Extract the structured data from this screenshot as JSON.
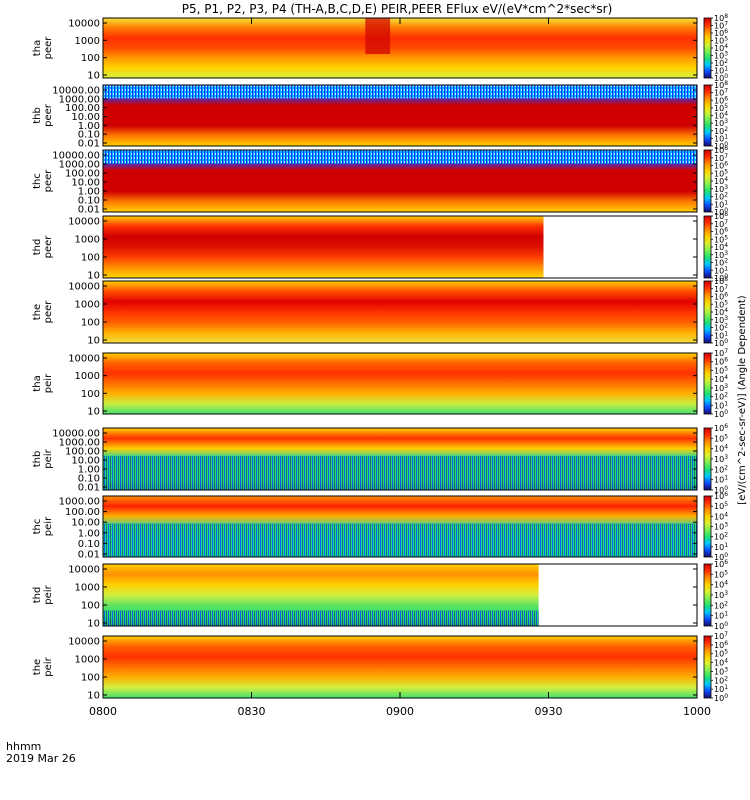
{
  "chart_data": {
    "type": "heatmap",
    "title": "P5, P1, P2, P3, P4 (TH-A,B,C,D,E) PEIR,PEER EFlux eV/(eV*cm^2*sec*sr)",
    "xlabel": "hhmm",
    "date_label": "2019 Mar 26",
    "x_ticks": [
      "0800",
      "0830",
      "0900",
      "0930",
      "1000"
    ],
    "x_range": [
      "0800",
      "1000"
    ],
    "colorbar_label": "[eV/(cm^2-sec-sr-eV)] (Angle Dependent)",
    "panels": [
      {
        "name": "tha peer",
        "ylabel": [
          "tha",
          "peer"
        ],
        "y_scale": "log",
        "y_ticks": [
          "10",
          "100",
          "1000",
          "10000"
        ],
        "colorbar_ticks": [
          "10^0",
          "10^1",
          "10^2",
          "10^3",
          "10^4",
          "10^5",
          "10^6",
          "10^7",
          "10^8"
        ],
        "data_end": "1000",
        "sat_events": [
          {
            "start": "0853",
            "end": "0858"
          }
        ]
      },
      {
        "name": "thb peer",
        "ylabel": [
          "thb",
          "peer"
        ],
        "y_scale": "log",
        "y_ticks": [
          "0.01",
          "0.10",
          "1.00",
          "10.00",
          "100.00",
          "1000.00",
          "10000.00"
        ],
        "colorbar_ticks": [
          "10^0",
          "10^1",
          "10^2",
          "10^3",
          "10^4",
          "10^5",
          "10^6",
          "10^7",
          "10^8"
        ],
        "data_end": "1000"
      },
      {
        "name": "thc peer",
        "ylabel": [
          "thc",
          "peer"
        ],
        "y_scale": "log",
        "y_ticks": [
          "0.01",
          "0.10",
          "1.00",
          "10.00",
          "100.00",
          "1000.00",
          "10000.00"
        ],
        "colorbar_ticks": [
          "10^0",
          "10^1",
          "10^2",
          "10^3",
          "10^4",
          "10^5",
          "10^6",
          "10^7",
          "10^8"
        ],
        "data_end": "1000"
      },
      {
        "name": "thd peer",
        "ylabel": [
          "thd",
          "peer"
        ],
        "y_scale": "log",
        "y_ticks": [
          "10",
          "100",
          "1000",
          "10000"
        ],
        "colorbar_ticks": [
          "10^0",
          "10^1",
          "10^2",
          "10^3",
          "10^4",
          "10^5",
          "10^6",
          "10^7",
          "10^8"
        ],
        "data_end": "0929"
      },
      {
        "name": "the peer",
        "ylabel": [
          "the",
          "peer"
        ],
        "y_scale": "log",
        "y_ticks": [
          "10",
          "100",
          "1000",
          "10000"
        ],
        "colorbar_ticks": [
          "10^0",
          "10^1",
          "10^2",
          "10^3",
          "10^4",
          "10^5",
          "10^6",
          "10^7",
          "10^8"
        ],
        "data_end": "1000"
      },
      {
        "name": "tha peir",
        "ylabel": [
          "tha",
          "peir"
        ],
        "y_scale": "log",
        "y_ticks": [
          "10",
          "100",
          "1000",
          "10000"
        ],
        "colorbar_ticks": [
          "10^0",
          "10^1",
          "10^2",
          "10^3",
          "10^4",
          "10^5",
          "10^6",
          "10^7"
        ],
        "data_end": "1000"
      },
      {
        "name": "thb peir",
        "ylabel": [
          "thb",
          "peir"
        ],
        "y_scale": "log",
        "y_ticks": [
          "0.01",
          "0.10",
          "1.00",
          "10.00",
          "100.00",
          "1000.00",
          "10000.00"
        ],
        "colorbar_ticks": [
          "10^0",
          "10^1",
          "10^2",
          "10^3",
          "10^4",
          "10^5",
          "10^6"
        ],
        "data_end": "1000"
      },
      {
        "name": "thc peir",
        "ylabel": [
          "thc",
          "peir"
        ],
        "y_scale": "log",
        "y_ticks": [
          "0.01",
          "0.10",
          "1.00",
          "10.00",
          "100.00",
          "1000.00"
        ],
        "colorbar_ticks": [
          "10^0",
          "10^1",
          "10^2",
          "10^3",
          "10^4",
          "10^5",
          "10^6"
        ],
        "data_end": "1000"
      },
      {
        "name": "thd peir",
        "ylabel": [
          "thd",
          "peir"
        ],
        "y_scale": "log",
        "y_ticks": [
          "10",
          "100",
          "1000",
          "10000"
        ],
        "colorbar_ticks": [
          "10^0",
          "10^1",
          "10^2",
          "10^3",
          "10^4",
          "10^5",
          "10^6"
        ],
        "data_end": "0928"
      },
      {
        "name": "the peir",
        "ylabel": [
          "the",
          "peir"
        ],
        "y_scale": "log",
        "y_ticks": [
          "10",
          "100",
          "1000",
          "10000"
        ],
        "colorbar_ticks": [
          "10^0",
          "10^1",
          "10^2",
          "10^3",
          "10^4",
          "10^5",
          "10^6",
          "10^7"
        ],
        "data_end": "1000"
      }
    ],
    "colorscale": [
      "#1a0a6e",
      "#0a4cff",
      "#00c8ff",
      "#20e070",
      "#7cf050",
      "#d8f030",
      "#ffd000",
      "#ff8a00",
      "#ff3000",
      "#d00000"
    ],
    "grid": false,
    "legend": "colorbars-right"
  }
}
